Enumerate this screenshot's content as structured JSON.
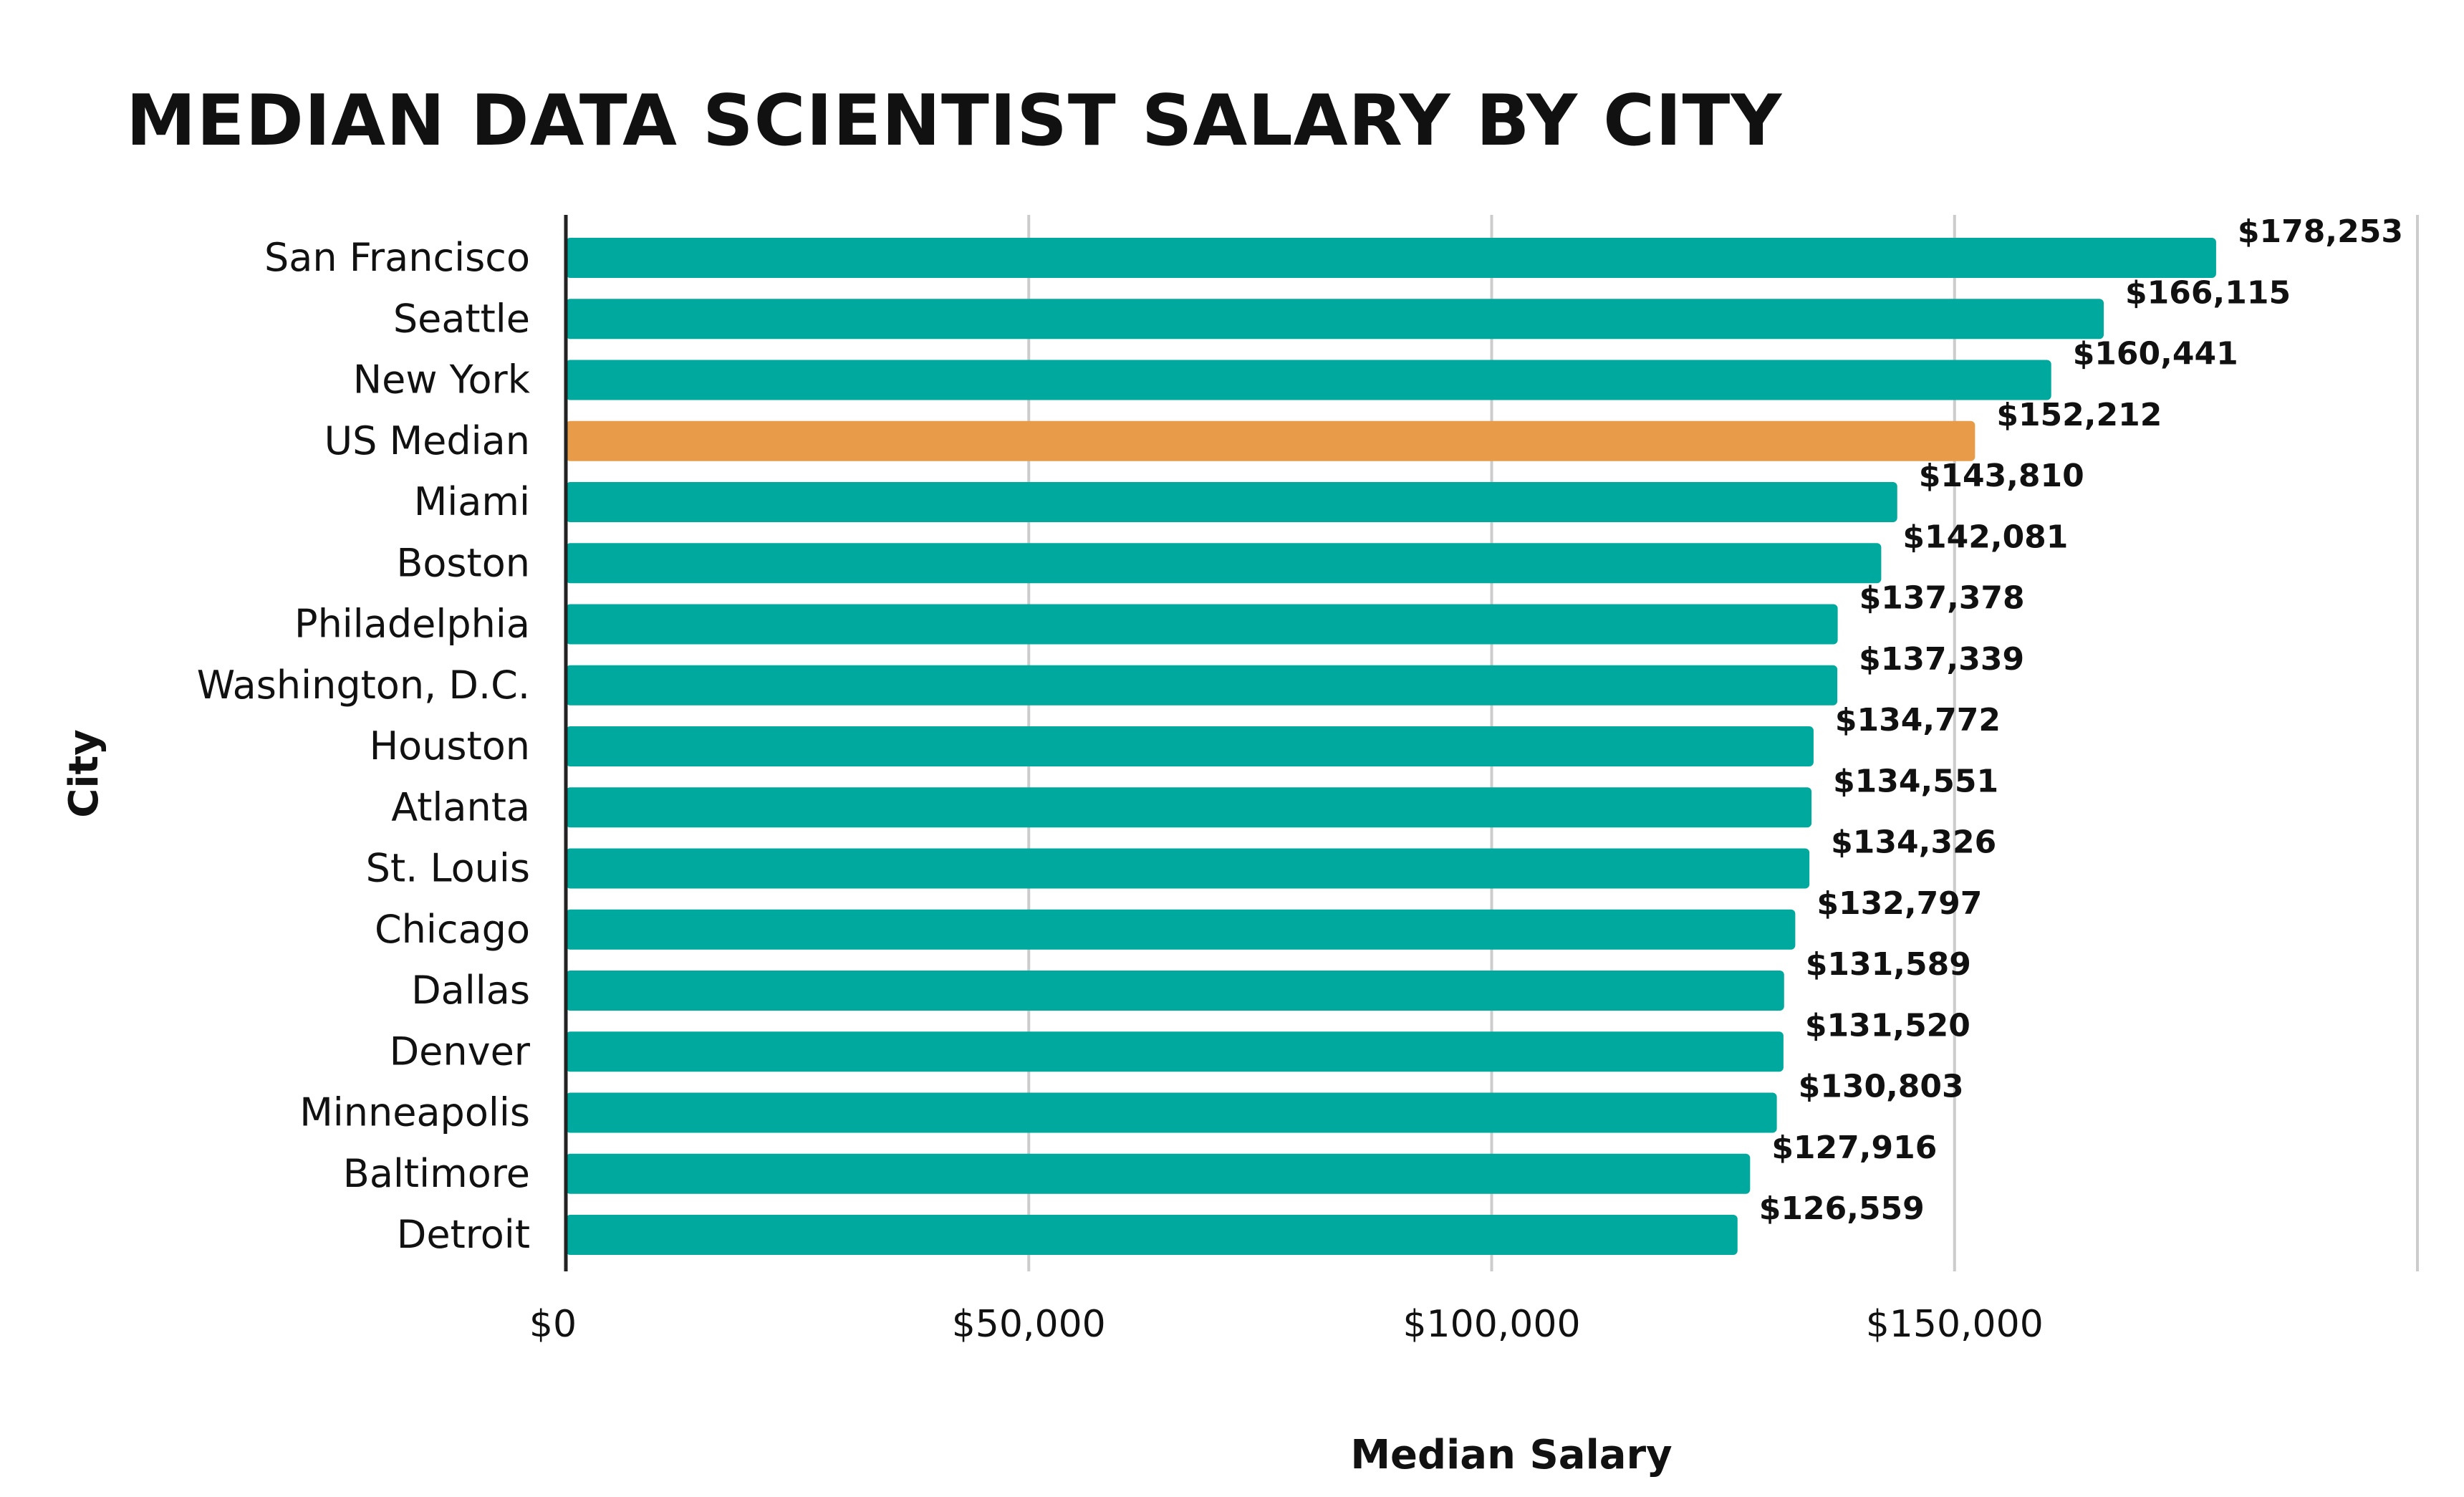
{
  "colors": {
    "bar": "#00A99D",
    "highlight_bar": "#E89C4A",
    "highlight_label": "#E89C4A",
    "grid": "#cccccc",
    "axis": "#222222",
    "text": "#111111"
  },
  "chart_data": {
    "type": "bar",
    "orientation": "horizontal",
    "title": "MEDIAN DATA SCIENTIST SALARY BY CITY",
    "xlabel": "Median Salary",
    "ylabel": "City",
    "xlim": [
      0,
      200000
    ],
    "x_ticks": [
      0,
      50000,
      100000,
      150000,
      200000
    ],
    "x_tick_labels": [
      "$0",
      "$50,000",
      "$100,000",
      "$150,000",
      ""
    ],
    "grid": true,
    "highlight_category": "US Median",
    "categories": [
      "San Francisco",
      "Seattle",
      "New York",
      "US Median",
      "Miami",
      "Boston",
      "Philadelphia",
      "Washington, D.C.",
      "Houston",
      "Atlanta",
      "St. Louis",
      "Chicago",
      "Dallas",
      "Denver",
      "Minneapolis",
      "Baltimore",
      "Detroit"
    ],
    "values": [
      178253,
      166115,
      160441,
      152212,
      143810,
      142081,
      137378,
      137339,
      134772,
      134551,
      134326,
      132797,
      131589,
      131520,
      130803,
      127916,
      126559
    ],
    "value_labels": [
      "$178,253",
      "$166,115",
      "$160,441",
      "$152,212",
      "$143,810",
      "$142,081",
      "$137,378",
      "$137,339",
      "$134,772",
      "$134,551",
      "$134,326",
      "$132,797",
      "$131,589",
      "$131,520",
      "$130,803",
      "$127,916",
      "$126,559"
    ]
  }
}
